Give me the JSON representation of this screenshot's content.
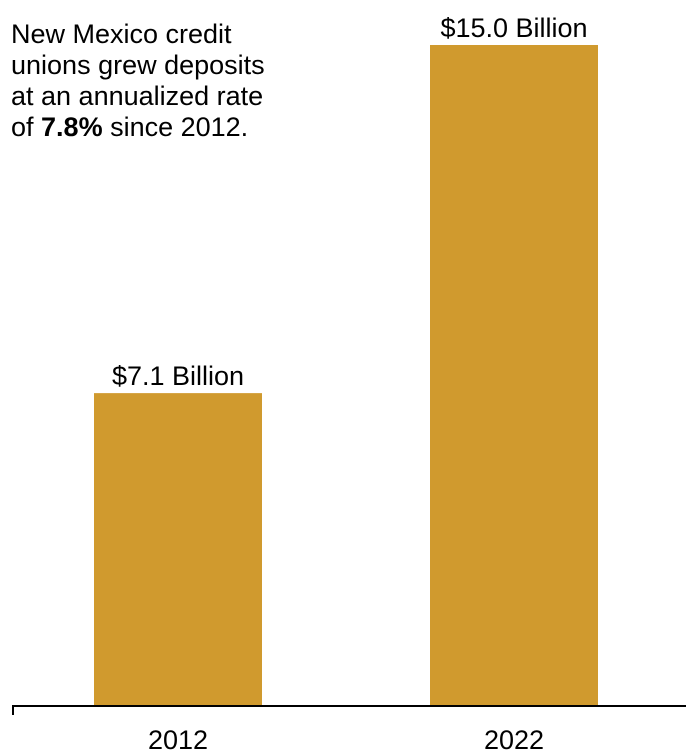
{
  "annotation": {
    "line1": "New Mexico credit",
    "line2": "unions grew deposits",
    "line3": "at an annualized rate",
    "line4_prefix": "of ",
    "line4_bold": "7.8%",
    "line4_suffix": " since 2012."
  },
  "chart_data": {
    "type": "bar",
    "title": "",
    "xlabel": "",
    "ylabel": "",
    "categories": [
      "2012",
      "2022"
    ],
    "values": [
      7.1,
      15.0
    ],
    "data_labels": [
      "$7.1 Billion",
      "$15.0 Billion"
    ],
    "unit": "Billion USD",
    "ylim": [
      0,
      15.0
    ],
    "grid": false,
    "legend": "none",
    "colors": {
      "bar": "#D09A2E",
      "axis": "#000000",
      "text": "#000000"
    }
  }
}
